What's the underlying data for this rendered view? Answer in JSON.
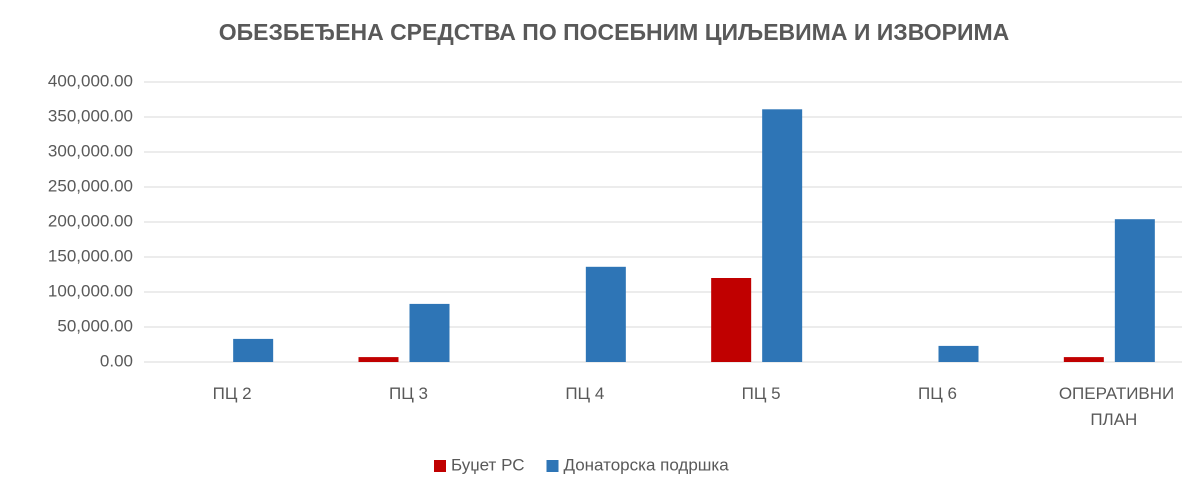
{
  "chart_data": {
    "type": "bar",
    "title": "ОБЕЗБЕЂЕНА СРЕДСТВА ПО ПОСЕБНИМ ЦИЉЕВИМА И ИЗВОРИМА",
    "categories": [
      "ПЦ 2",
      "ПЦ 3",
      "ПЦ 4",
      "ПЦ 5",
      "ПЦ 6",
      "ОПЕРАТИВНИ ПЛАН"
    ],
    "series": [
      {
        "name": "Буџет РС",
        "color": "#c00000",
        "values": [
          0,
          7000,
          0,
          120000,
          0,
          7000
        ]
      },
      {
        "name": "Донаторска подршка",
        "color": "#2e75b6",
        "values": [
          33000,
          83000,
          136000,
          361000,
          23000,
          204000
        ]
      }
    ],
    "ylim": [
      0,
      400000
    ],
    "yticks": [
      {
        "value": 0,
        "label": "0.00"
      },
      {
        "value": 50000,
        "label": "50,000.00"
      },
      {
        "value": 100000,
        "label": "100,000.00"
      },
      {
        "value": 150000,
        "label": "150,000.00"
      },
      {
        "value": 200000,
        "label": "200,000.00"
      },
      {
        "value": 250000,
        "label": "250,000.00"
      },
      {
        "value": 300000,
        "label": "300,000.00"
      },
      {
        "value": 350000,
        "label": "350,000.00"
      },
      {
        "value": 400000,
        "label": "400,000.00"
      }
    ],
    "grid": true,
    "legend": "bottom"
  }
}
